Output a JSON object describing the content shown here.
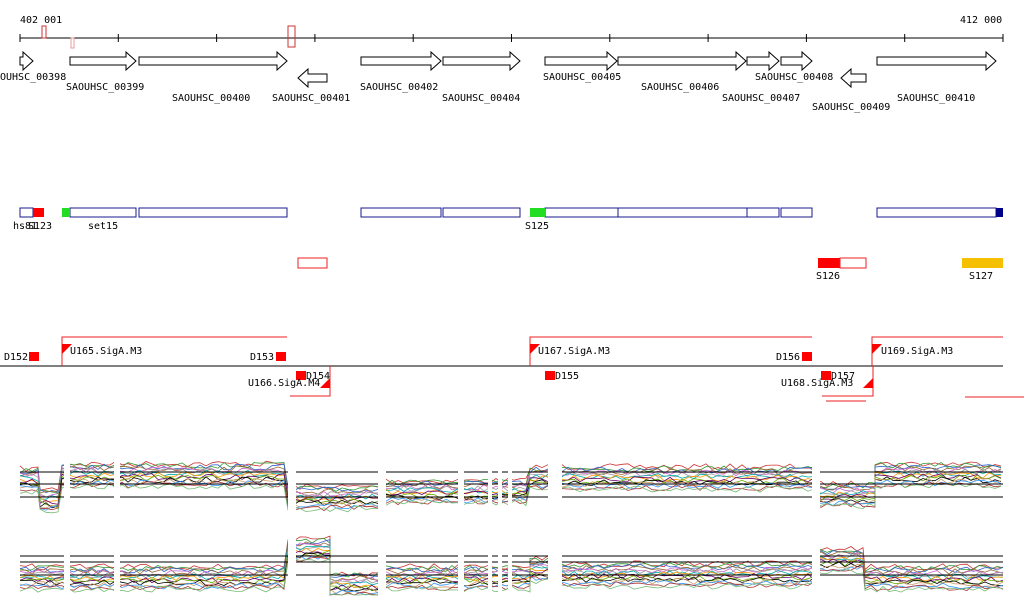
{
  "ruler": {
    "start": "402 001",
    "end": "412 000"
  },
  "genes": [
    "OUHSC_00398",
    "SAOUHSC_00399",
    "SAOUHSC_00400",
    "SAOUHSC_00401",
    "SAOUHSC_00402",
    "SAOUHSC_00404",
    "SAOUHSC_00405",
    "SAOUHSC_00406",
    "SAOUHSC_00407",
    "SAOUHSC_00408",
    "SAOUHSC_00409",
    "SAOUHSC_00410"
  ],
  "segments": [
    "hs81",
    "S123",
    "set15",
    "S125",
    "S126",
    "S127"
  ],
  "promoters": [
    "D152",
    "U165.SigA.M3",
    "D153",
    "D154",
    "U166.SigA.M4",
    "U167.SigA.M3",
    "D155",
    "D156",
    "D157",
    "U168.SigA.M3",
    "U169.SigA.M3"
  ]
}
